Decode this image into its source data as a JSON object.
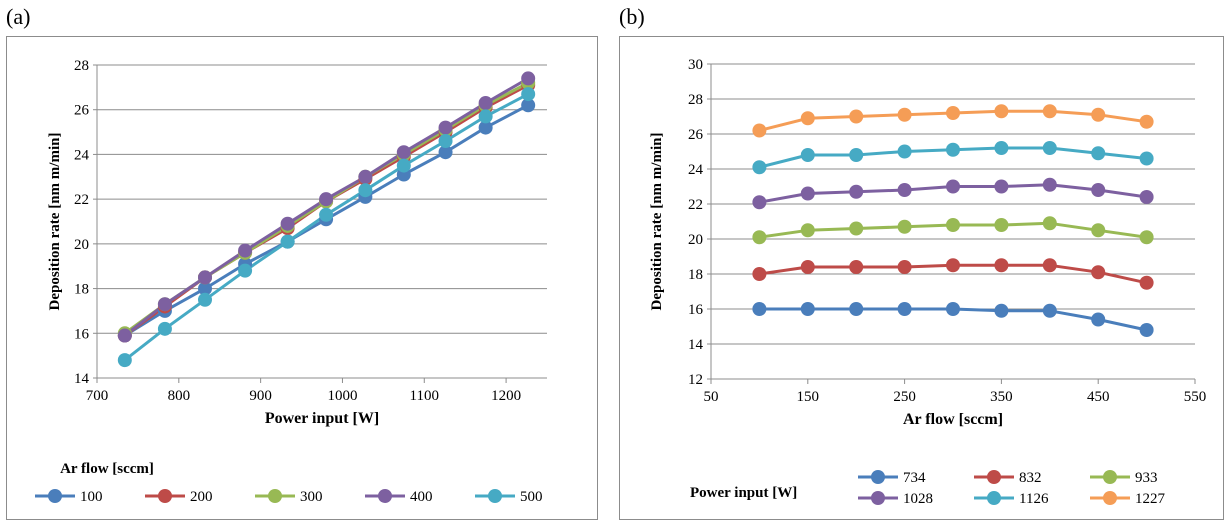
{
  "panels": [
    {
      "tag": "(a)"
    },
    {
      "tag": "(b)"
    }
  ],
  "chart_data": [
    {
      "type": "line",
      "xlabel": "Power input [W]",
      "ylabel": "Deposition rate [nm m/min]",
      "xlim": [
        700,
        1250
      ],
      "ylim": [
        14,
        28
      ],
      "xticks": [
        "700",
        "800",
        "900",
        "1000",
        "1100",
        "1200"
      ],
      "yticks": [
        "14",
        "16",
        "18",
        "20",
        "22",
        "24",
        "26",
        "28"
      ],
      "grid": "horizontal",
      "legend_title": "Ar flow [sccm]",
      "legend_position": "bottom",
      "x": [
        734,
        783,
        832,
        881,
        933,
        980,
        1028,
        1075,
        1126,
        1175,
        1227
      ],
      "series": [
        {
          "name": "100",
          "color": "#4a7ebb",
          "values": [
            15.9,
            17.0,
            18.0,
            19.1,
            20.1,
            21.1,
            22.1,
            23.1,
            24.1,
            25.2,
            26.2
          ]
        },
        {
          "name": "200",
          "color": "#be4b48",
          "values": [
            15.9,
            17.2,
            18.5,
            19.6,
            20.7,
            21.9,
            22.9,
            23.9,
            25.0,
            26.1,
            27.1
          ]
        },
        {
          "name": "300",
          "color": "#98b954",
          "values": [
            16.0,
            17.3,
            18.5,
            19.6,
            20.8,
            21.9,
            23.0,
            24.0,
            25.1,
            26.2,
            27.2
          ]
        },
        {
          "name": "400",
          "color": "#7d60a0",
          "values": [
            15.9,
            17.3,
            18.5,
            19.7,
            20.9,
            22.0,
            23.0,
            24.1,
            25.2,
            26.3,
            27.4
          ]
        },
        {
          "name": "500",
          "color": "#46aac4",
          "values": [
            14.8,
            16.2,
            17.5,
            18.8,
            20.1,
            21.3,
            22.4,
            23.5,
            24.6,
            25.7,
            26.7
          ]
        }
      ]
    },
    {
      "type": "line",
      "xlabel": "Ar flow [sccm]",
      "ylabel": "Deposition rate [nm m/min]",
      "xlim": [
        50,
        550
      ],
      "ylim": [
        12,
        30
      ],
      "xticks": [
        "50",
        "150",
        "250",
        "350",
        "450",
        "550"
      ],
      "yticks": [
        "12",
        "14",
        "16",
        "18",
        "20",
        "22",
        "24",
        "26",
        "28",
        "30"
      ],
      "grid": "horizontal",
      "legend_title": "Power input [W]",
      "legend_position": "bottom",
      "x": [
        100,
        150,
        200,
        250,
        300,
        350,
        400,
        450,
        500
      ],
      "series": [
        {
          "name": "734",
          "color": "#4a7ebb",
          "values": [
            16.0,
            16.0,
            16.0,
            16.0,
            16.0,
            15.9,
            15.9,
            15.4,
            14.8
          ]
        },
        {
          "name": "832",
          "color": "#be4b48",
          "values": [
            18.0,
            18.4,
            18.4,
            18.4,
            18.5,
            18.5,
            18.5,
            18.1,
            17.5
          ]
        },
        {
          "name": "933",
          "color": "#98b954",
          "values": [
            20.1,
            20.5,
            20.6,
            20.7,
            20.8,
            20.8,
            20.9,
            20.5,
            20.1
          ]
        },
        {
          "name": "1028",
          "color": "#7d60a0",
          "values": [
            22.1,
            22.6,
            22.7,
            22.8,
            23.0,
            23.0,
            23.1,
            22.8,
            22.4
          ]
        },
        {
          "name": "1126",
          "color": "#46aac4",
          "values": [
            24.1,
            24.8,
            24.8,
            25.0,
            25.1,
            25.2,
            25.2,
            24.9,
            24.6
          ]
        },
        {
          "name": "1227",
          "color": "#f59d56",
          "values": [
            26.2,
            26.9,
            27.0,
            27.1,
            27.2,
            27.3,
            27.3,
            27.1,
            26.7
          ]
        }
      ]
    }
  ]
}
